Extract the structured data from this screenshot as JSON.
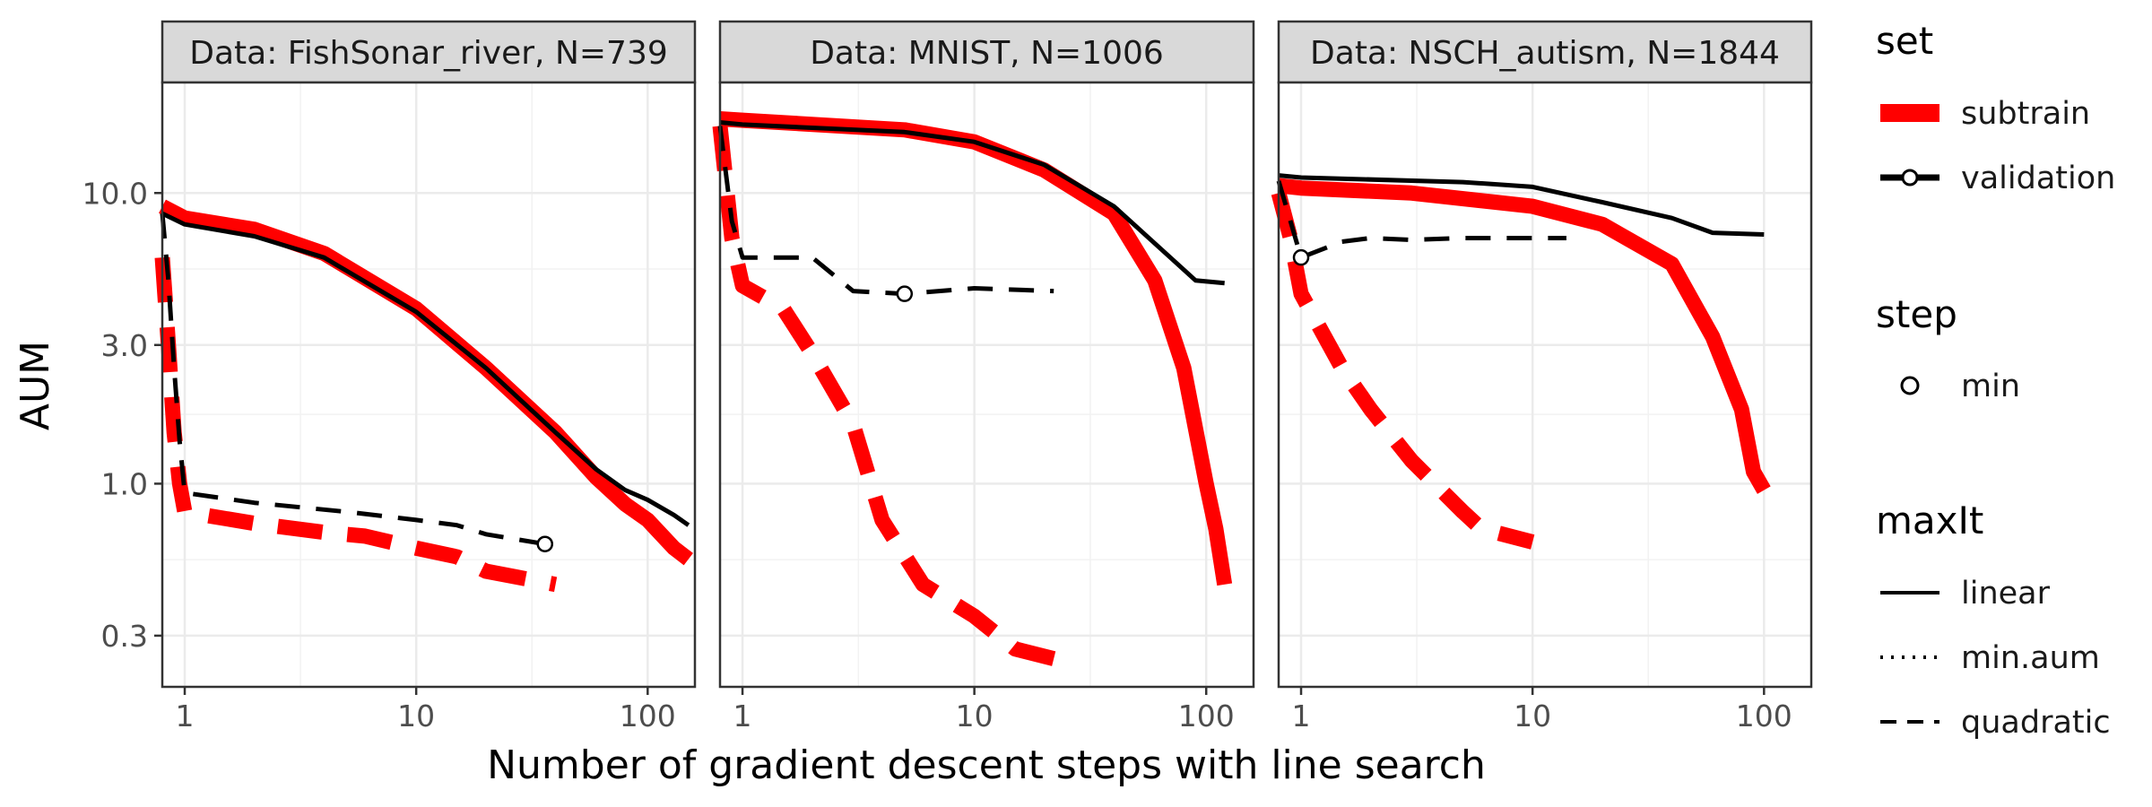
{
  "chart_data": {
    "type": "line",
    "xlabel": "Number of gradient descent steps with line search",
    "ylabel": "AUM",
    "x_scale": "log10",
    "y_scale": "log10",
    "xlim": [
      0.8,
      160
    ],
    "ylim": [
      0.2,
      24
    ],
    "x_ticks": [
      {
        "value": 1,
        "label": "1"
      },
      {
        "value": 10,
        "label": "10"
      },
      {
        "value": 100,
        "label": "100"
      }
    ],
    "y_ticks": [
      {
        "value": 0.3,
        "label": "0.3"
      },
      {
        "value": 1.0,
        "label": "1.0"
      },
      {
        "value": 3.0,
        "label": "3.0"
      },
      {
        "value": 10.0,
        "label": "10.0"
      }
    ],
    "grid": true,
    "legend": {
      "position": "right",
      "sections": [
        {
          "title": "set",
          "entries": [
            {
              "label": "subtrain",
              "color": "#ff0000",
              "kind": "thick-line"
            },
            {
              "label": "validation",
              "color": "#000000",
              "kind": "line-point"
            }
          ]
        },
        {
          "title": "step",
          "entries": [
            {
              "label": "min",
              "color": "#000000",
              "kind": "point"
            }
          ]
        },
        {
          "title": "maxIt",
          "entries": [
            {
              "label": "linear",
              "dash": "solid"
            },
            {
              "label": "min.aum",
              "dash": "dotted"
            },
            {
              "label": "quadratic",
              "dash": "dashed"
            }
          ]
        }
      ]
    },
    "panels": [
      {
        "title": "Data: FishSonar_river, N=739",
        "series": [
          {
            "set": "subtrain",
            "maxIt": "linear",
            "color": "#ff0000",
            "points": [
              [
                0.8,
                9.0
              ],
              [
                1,
                8.2
              ],
              [
                2,
                7.5
              ],
              [
                4,
                6.2
              ],
              [
                10,
                4.0
              ],
              [
                20,
                2.5
              ],
              [
                40,
                1.5
              ],
              [
                60,
                1.05
              ],
              [
                80,
                0.85
              ],
              [
                100,
                0.75
              ],
              [
                130,
                0.6
              ],
              [
                150,
                0.55
              ]
            ]
          },
          {
            "set": "validation",
            "maxIt": "linear",
            "color": "#000000",
            "points": [
              [
                0.8,
                8.5
              ],
              [
                1,
                7.8
              ],
              [
                2,
                7.1
              ],
              [
                4,
                6.0
              ],
              [
                10,
                3.9
              ],
              [
                20,
                2.5
              ],
              [
                40,
                1.5
              ],
              [
                60,
                1.12
              ],
              [
                80,
                0.95
              ],
              [
                100,
                0.88
              ],
              [
                130,
                0.78
              ],
              [
                150,
                0.72
              ]
            ]
          },
          {
            "set": "subtrain",
            "maxIt": "quadratic",
            "color": "#ff0000",
            "points": [
              [
                0.8,
                6.0
              ],
              [
                0.85,
                3.0
              ],
              [
                0.9,
                1.5
              ],
              [
                0.95,
                1.0
              ],
              [
                1,
                0.8
              ],
              [
                2,
                0.73
              ],
              [
                4,
                0.68
              ],
              [
                6,
                0.66
              ],
              [
                10,
                0.6
              ],
              [
                15,
                0.56
              ],
              [
                20,
                0.5
              ],
              [
                40,
                0.45
              ]
            ]
          },
          {
            "set": "validation",
            "maxIt": "quadratic",
            "color": "#000000",
            "points": [
              [
                0.8,
                8.5
              ],
              [
                0.85,
                5.0
              ],
              [
                0.9,
                2.5
              ],
              [
                0.95,
                1.4
              ],
              [
                1,
                0.93
              ],
              [
                2,
                0.86
              ],
              [
                5,
                0.8
              ],
              [
                10,
                0.75
              ],
              [
                15,
                0.72
              ],
              [
                20,
                0.67
              ],
              [
                36,
                0.62
              ]
            ]
          }
        ],
        "min_points": [
          {
            "set": "validation",
            "x": 36,
            "y": 0.62
          }
        ]
      },
      {
        "title": "Data: MNIST, N=1006",
        "series": [
          {
            "set": "subtrain",
            "maxIt": "linear",
            "color": "#ff0000",
            "points": [
              [
                0.8,
                18.0
              ],
              [
                1,
                17.8
              ],
              [
                5,
                16.5
              ],
              [
                10,
                15.0
              ],
              [
                20,
                12.0
              ],
              [
                40,
                8.5
              ],
              [
                60,
                5.0
              ],
              [
                80,
                2.5
              ],
              [
                100,
                1.0
              ],
              [
                110,
                0.7
              ],
              [
                120,
                0.45
              ]
            ]
          },
          {
            "set": "validation",
            "maxIt": "linear",
            "color": "#000000",
            "points": [
              [
                0.8,
                17.5
              ],
              [
                1,
                17.2
              ],
              [
                5,
                16.2
              ],
              [
                10,
                15.0
              ],
              [
                20,
                12.5
              ],
              [
                40,
                9.0
              ],
              [
                70,
                6.0
              ],
              [
                90,
                5.0
              ],
              [
                120,
                4.9
              ]
            ]
          },
          {
            "set": "subtrain",
            "maxIt": "quadratic",
            "color": "#ff0000",
            "points": [
              [
                0.8,
                17.0
              ],
              [
                0.9,
                7.0
              ],
              [
                1,
                4.8
              ],
              [
                1.5,
                4.0
              ],
              [
                2,
                2.8
              ],
              [
                3,
                1.6
              ],
              [
                4,
                0.75
              ],
              [
                6,
                0.45
              ],
              [
                10,
                0.35
              ],
              [
                15,
                0.27
              ],
              [
                22,
                0.25
              ]
            ]
          },
          {
            "set": "validation",
            "maxIt": "quadratic",
            "color": "#000000",
            "points": [
              [
                0.8,
                17.0
              ],
              [
                0.9,
                8.0
              ],
              [
                1,
                6.0
              ],
              [
                2,
                6.0
              ],
              [
                3,
                4.6
              ],
              [
                5,
                4.5
              ],
              [
                10,
                4.7
              ],
              [
                22,
                4.6
              ]
            ]
          }
        ],
        "min_points": [
          {
            "set": "validation",
            "x": 5,
            "y": 4.5
          }
        ]
      },
      {
        "title": "Data: NSCH_autism, N=1844",
        "series": [
          {
            "set": "subtrain",
            "maxIt": "linear",
            "color": "#ff0000",
            "points": [
              [
                0.8,
                10.6
              ],
              [
                1,
                10.4
              ],
              [
                3,
                10.0
              ],
              [
                10,
                9.0
              ],
              [
                20,
                7.8
              ],
              [
                40,
                5.7
              ],
              [
                60,
                3.2
              ],
              [
                80,
                1.8
              ],
              [
                90,
                1.1
              ],
              [
                100,
                0.95
              ]
            ]
          },
          {
            "set": "validation",
            "maxIt": "linear",
            "color": "#000000",
            "points": [
              [
                0.8,
                11.5
              ],
              [
                1,
                11.3
              ],
              [
                5,
                10.9
              ],
              [
                10,
                10.5
              ],
              [
                20,
                9.3
              ],
              [
                40,
                8.2
              ],
              [
                60,
                7.3
              ],
              [
                100,
                7.2
              ]
            ]
          },
          {
            "set": "subtrain",
            "maxIt": "quadratic",
            "color": "#ff0000",
            "points": [
              [
                0.8,
                10.0
              ],
              [
                0.9,
                7.0
              ],
              [
                1,
                4.5
              ],
              [
                1.5,
                2.5
              ],
              [
                2,
                1.8
              ],
              [
                3,
                1.2
              ],
              [
                5,
                0.8
              ],
              [
                6,
                0.7
              ],
              [
                10,
                0.63
              ]
            ]
          },
          {
            "set": "validation",
            "maxIt": "quadratic",
            "color": "#000000",
            "points": [
              [
                0.8,
                11.0
              ],
              [
                0.9,
                8.0
              ],
              [
                1,
                6.0
              ],
              [
                1.5,
                6.8
              ],
              [
                2,
                7.0
              ],
              [
                3,
                6.9
              ],
              [
                5,
                7.0
              ],
              [
                14,
                7.0
              ]
            ]
          }
        ],
        "min_points": [
          {
            "set": "validation",
            "x": 1,
            "y": 6.0
          }
        ]
      }
    ]
  }
}
